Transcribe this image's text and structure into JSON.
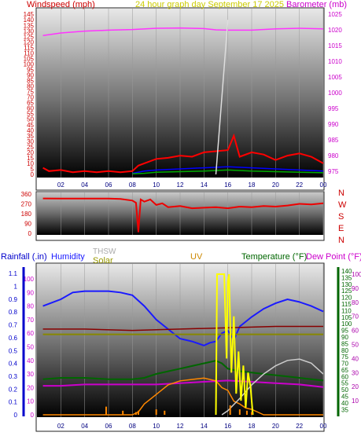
{
  "header": {
    "left_label": "Windspeed (mph)",
    "center_label": "24 hour graph day   September 17 2025",
    "right_label": "Barometer (mb)"
  },
  "colors": {
    "wind_axis": "#cc0000",
    "baro_axis": "#cc00cc",
    "center_title": "#cccc00",
    "wind_series": "#ff0000",
    "wind_avg": "#0000ff",
    "wind_low": "#00aa00",
    "baro_series": "#ff33ff",
    "direction_series": "#ee0000",
    "rain": "#0000cc",
    "humidity": "#1a1aff",
    "temperature": "#006600",
    "dewpoint": "#cc00cc",
    "uv": "#cc8800",
    "solar": "#ff8800",
    "thsw": "#aaaaaa",
    "green_axis": "#006600",
    "grid_line": "#9a9a9a"
  },
  "chart_data": [
    {
      "type": "line",
      "title": "24 hour graph day   September 17 2025",
      "x_ticks": [
        "02",
        "04",
        "06",
        "08",
        "10",
        "12",
        "14",
        "16",
        "18",
        "20",
        "22",
        "00"
      ],
      "left_axis": {
        "label": "Windspeed (mph)",
        "ticks": [
          "0",
          "5",
          "10",
          "15",
          "20",
          "25",
          "30",
          "35",
          "40",
          "45",
          "50",
          "55",
          "60",
          "65",
          "70",
          "75",
          "80",
          "85",
          "90",
          "95",
          "100",
          "105",
          "110",
          "115",
          "120",
          "125",
          "130",
          "135",
          "140",
          "145"
        ],
        "range": [
          0,
          148
        ]
      },
      "right_axis": {
        "label": "Barometer (mb)",
        "ticks": [
          "975",
          "980",
          "985",
          "990",
          "995",
          "1000",
          "1005",
          "1010",
          "1015",
          "1020",
          "1025"
        ],
        "range": [
          974,
          1026
        ]
      },
      "series": [
        {
          "name": "Barometer",
          "axis": "right",
          "x": [
            0.5,
            2,
            4,
            6,
            8,
            10,
            12,
            14,
            15,
            16,
            18,
            20,
            22,
            24
          ],
          "y": [
            1018.2,
            1019.0,
            1019.6,
            1019.9,
            1020.1,
            1020.5,
            1020.6,
            1020.4,
            1020.0,
            1019.9,
            1019.9,
            1020.3,
            1020.5,
            1020.3
          ]
        },
        {
          "name": "Wind gust",
          "axis": "left",
          "x": [
            0.5,
            1,
            2,
            3,
            4,
            5,
            6,
            7,
            8,
            8.5,
            9,
            10,
            11,
            12,
            13,
            14,
            15,
            16,
            16.5,
            17,
            18,
            19,
            20,
            21,
            22,
            23,
            24
          ],
          "y": [
            6,
            3,
            4,
            2,
            3,
            2,
            3,
            2,
            3,
            8,
            10,
            14,
            15,
            17,
            16,
            20,
            21,
            22,
            35,
            16,
            20,
            18,
            13,
            17,
            19,
            16,
            10
          ]
        },
        {
          "name": "Wind average",
          "axis": "left",
          "x": [
            8,
            9,
            10,
            12,
            14,
            16,
            18,
            20,
            22,
            24
          ],
          "y": [
            1,
            3,
            4,
            5,
            6,
            7,
            6,
            5,
            4,
            3
          ]
        },
        {
          "name": "Wind low",
          "axis": "left",
          "x": [
            8,
            9,
            10,
            12,
            14,
            16,
            18,
            20,
            22,
            24
          ],
          "y": [
            0.5,
            1,
            2,
            2.5,
            3,
            4,
            3,
            2.5,
            2,
            1.5
          ]
        },
        {
          "name": "THSW spike",
          "axis": "left",
          "x": [
            15.0,
            16.0
          ],
          "y": [
            0,
            140
          ]
        }
      ]
    },
    {
      "type": "line",
      "x_ticks": [
        "02",
        "04",
        "06",
        "08",
        "10",
        "12",
        "14",
        "16",
        "18",
        "20",
        "22",
        "00"
      ],
      "left_axis": {
        "ticks": [
          "0",
          "90",
          "180",
          "270",
          "360"
        ],
        "range": [
          0,
          360
        ]
      },
      "right_axis": {
        "ticks": [
          "N",
          "W",
          "S",
          "E",
          "N"
        ]
      },
      "series": [
        {
          "name": "Wind direction",
          "x": [
            0.5,
            2,
            4,
            6,
            7,
            8,
            8.3,
            8.5,
            8.7,
            9,
            9.5,
            10,
            10.5,
            11,
            12,
            13,
            14,
            15,
            16,
            17,
            18,
            19,
            20,
            21,
            22,
            23,
            24
          ],
          "y": [
            320,
            318,
            318,
            318,
            315,
            300,
            280,
            10,
            310,
            290,
            310,
            260,
            275,
            240,
            250,
            230,
            235,
            240,
            230,
            245,
            240,
            250,
            245,
            255,
            270,
            265,
            275
          ]
        }
      ]
    },
    {
      "type": "line",
      "x_ticks": [
        "02",
        "04",
        "06",
        "08",
        "10",
        "12",
        "14",
        "16",
        "18",
        "20",
        "22",
        "00"
      ],
      "axis_titles": {
        "rain": "Rainfall (.in)",
        "humidity": "Humidity",
        "thsw": "THSW",
        "solar": "Solar",
        "uv": "UV",
        "temperature": "Temperature (°F)",
        "dewpoint": "Dew Point (°F)"
      },
      "left_axis": {
        "ticks": [
          "0",
          "0.1",
          "0.2",
          "0.3",
          "0.4",
          "0.5",
          "0.6",
          "0.7",
          "0.8",
          "0.9",
          "1",
          "1.1"
        ],
        "range": [
          0,
          1.15
        ]
      },
      "left_axis_2": {
        "ticks": [
          "0",
          "10",
          "20",
          "30",
          "40",
          "50",
          "60",
          "70",
          "80",
          "90",
          "100"
        ],
        "range": [
          0,
          100
        ]
      },
      "right_axis": {
        "ticks": [
          "35",
          "40",
          "45",
          "50",
          "55",
          "60",
          "65",
          "70",
          "75",
          "80",
          "85",
          "90",
          "95",
          "100",
          "105",
          "110",
          "115",
          "120",
          "125",
          "130",
          "135",
          "140"
        ],
        "range": [
          31,
          143
        ]
      },
      "right_axis_2": {
        "ticks": [
          "10",
          "20",
          "30",
          "40",
          "50",
          "60",
          "70",
          "80",
          "90",
          "100"
        ],
        "range": [
          0,
          105
        ]
      },
      "series": [
        {
          "name": "Humidity",
          "axis": "left_2",
          "x": [
            0.5,
            2,
            3,
            4,
            5,
            6,
            7,
            8,
            9,
            10,
            11,
            12,
            13,
            14,
            14.5,
            15,
            15.5,
            16,
            16.5,
            17,
            18,
            19,
            20,
            21,
            22,
            23,
            24
          ],
          "y": [
            80,
            85,
            90,
            91,
            91,
            91,
            90,
            88,
            80,
            70,
            63,
            56,
            54,
            51,
            53,
            54,
            60,
            62,
            55,
            65,
            72,
            78,
            82,
            85,
            83,
            80,
            76
          ]
        },
        {
          "name": "Temperature",
          "axis": "right",
          "x": [
            0.5,
            2,
            4,
            6,
            8,
            9,
            10,
            11,
            12,
            13,
            14,
            15,
            15.5,
            16,
            17,
            18,
            19,
            20,
            21,
            22,
            23,
            24
          ],
          "y": [
            58,
            59,
            59,
            58,
            58,
            59,
            62,
            64,
            66,
            68,
            70,
            72,
            70,
            66,
            64,
            63,
            62,
            61,
            60,
            59,
            58,
            57
          ]
        },
        {
          "name": "Dew Point",
          "axis": "right",
          "x": [
            0.5,
            2,
            4,
            6,
            8,
            10,
            12,
            14,
            16,
            18,
            20,
            22,
            24
          ],
          "y": [
            53,
            53,
            54,
            54,
            54,
            54,
            55,
            56,
            57,
            56,
            55,
            54,
            52
          ]
        },
        {
          "name": "Dark red line",
          "axis": "right",
          "x": [
            0.5,
            4,
            8,
            12,
            16,
            20,
            24
          ],
          "y": [
            96,
            96,
            95,
            96,
            97,
            98,
            98
          ]
        },
        {
          "name": "Olive line",
          "axis": "right",
          "x": [
            0.5,
            24
          ],
          "y": [
            92,
            92
          ]
        },
        {
          "name": "Solar",
          "axis": "left_2",
          "x": [
            0.5,
            7,
            8,
            8.5,
            9,
            10,
            11,
            12,
            13,
            14,
            15,
            15.5,
            16,
            16.5,
            17,
            17.5,
            18,
            18.5,
            19,
            19.5,
            20,
            24
          ],
          "y": [
            0,
            0,
            0,
            2,
            8,
            15,
            22,
            25,
            26,
            27,
            25,
            20,
            18,
            10,
            8,
            5,
            4,
            2,
            0,
            0,
            0,
            0
          ]
        },
        {
          "name": "THSW",
          "axis": "left_2",
          "x": [
            15.5,
            16,
            17,
            18,
            19,
            20,
            21,
            22,
            23,
            24
          ],
          "y": [
            0,
            3,
            12,
            22,
            30,
            36,
            40,
            41,
            38,
            30
          ]
        },
        {
          "name": "UV",
          "axis": "right_2",
          "x": [
            15.0,
            15.1,
            15.2,
            15.3,
            15.5,
            15.7,
            15.9,
            16.0,
            16.1,
            16.3,
            16.5,
            16.7,
            16.9,
            17.1,
            17.3,
            17.5,
            17.7,
            17.9,
            18.1
          ],
          "y": [
            0,
            100,
            100,
            100,
            100,
            100,
            40,
            95,
            100,
            30,
            70,
            15,
            45,
            10,
            35,
            5,
            30,
            20,
            0
          ]
        },
        {
          "name": "Solar bars",
          "axis": "left_2",
          "x": [
            5.8,
            7.2,
            8.3,
            8.5,
            10.0,
            10.7,
            16.2,
            17.0,
            17.6,
            18.0
          ],
          "y": [
            6,
            3,
            2,
            3,
            4,
            3,
            7,
            4,
            3,
            2
          ]
        }
      ]
    }
  ],
  "panel2": {
    "left_ticks": [
      "0",
      "90",
      "180",
      "270",
      "360"
    ],
    "compass": [
      "N",
      "W",
      "S",
      "E",
      "N"
    ]
  },
  "panel3": {
    "rain_label": "Rainfall (.in)",
    "humidity_label": "Humidity",
    "thsw_label": "THSW",
    "solar_label": "Solar",
    "uv_label": "UV",
    "temperature_label": "Temperature (°F)",
    "dewpoint_label": "Dew Point (°F)"
  }
}
